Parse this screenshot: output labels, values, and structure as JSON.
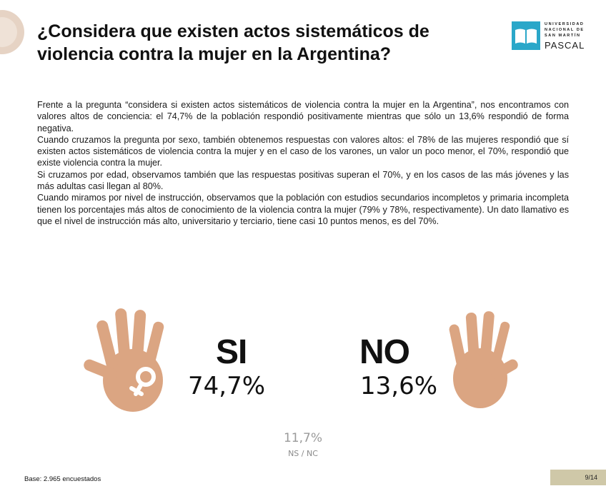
{
  "title": {
    "line1": "¿Considera que existen actos sistemáticos de",
    "line2": "violencia contra la mujer en la Argentina?"
  },
  "logo": {
    "line1": "UNIVERSIDAD",
    "line2": "NACIONAL DE",
    "line3": "SAN MARTÍN",
    "name": "PASCAL",
    "icon": "open-book-icon",
    "color": "#2aa7c9"
  },
  "paragraphs": [
    "Frente a la pregunta “considera si existen actos sistemáticos de violencia contra la mujer en la Argentina”, nos encontramos con valores altos de conciencia: el 74,7% de la población respondió positivamente mientras que sólo un 13,6% respondió de forma negativa.",
    "Cuando cruzamos la pregunta por sexo, también obtenemos respuestas con valores altos: el 78% de las mujeres respondió que sí existen actos sistemáticos de violencia contra la mujer y en el caso de los varones, un valor un poco menor, el 70%, respondió que existe violencia contra la mujer.",
    "Si cruzamos por edad, observamos también que las respuestas positivas superan el 70%, y en los casos de las más jóvenes y las más adultas casi llegan al 80%.",
    "Cuando miramos por nivel de instrucción, observamos que la población con estudios secundarios incompletos y primaria incompleta tienen los porcentajes más altos de conocimiento de la violencia contra la mujer (79% y 78%, respectivamente). Un dato llamativo es que el nivel de instrucción más alto, universitario y terciario, tiene casi 10 puntos menos, es del 70%."
  ],
  "results": {
    "yes_label": "SI",
    "yes_value": "74,7%",
    "no_label": "NO",
    "no_value": "13,6%",
    "ns_value": "11,7%",
    "ns_label": "NS / NC"
  },
  "hands": {
    "color": "#dba582",
    "left_icon": "hand-with-female-symbol-icon",
    "right_icon": "raised-hand-icon"
  },
  "footer": {
    "base": "Base:  2.965 encuestados",
    "page": "9/14"
  }
}
